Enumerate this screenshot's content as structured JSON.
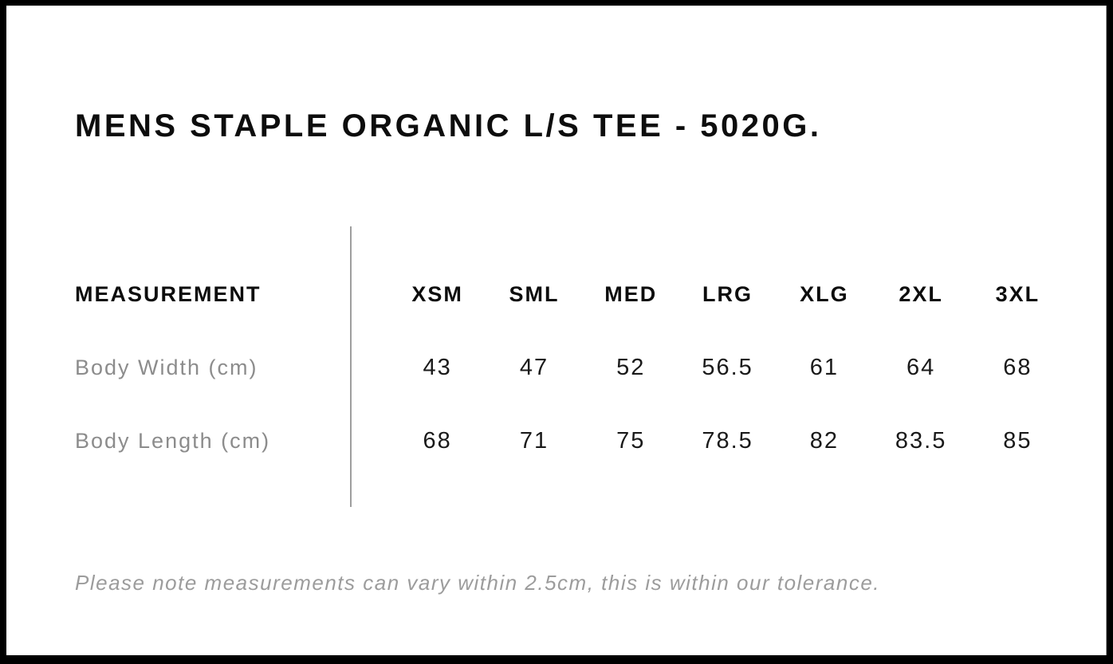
{
  "page": {
    "title": "MENS STAPLE ORGANIC L/S TEE - 5020G.",
    "note": "Please note measurements can vary within 2.5cm, this is within our tolerance."
  },
  "size_chart": {
    "measurement_header": "MEASUREMENT",
    "sizes": [
      "XSM",
      "SML",
      "MED",
      "LRG",
      "XLG",
      "2XL",
      "3XL"
    ],
    "rows": [
      {
        "label": "Body Width (cm)",
        "values": [
          "43",
          "47",
          "52",
          "56.5",
          "61",
          "64",
          "68"
        ]
      },
      {
        "label": "Body Length (cm)",
        "values": [
          "68",
          "71",
          "75",
          "78.5",
          "82",
          "83.5",
          "85"
        ]
      }
    ]
  },
  "chart_data": {
    "type": "table",
    "title": "MENS STAPLE ORGANIC L/S TEE - 5020G.",
    "columns": [
      "MEASUREMENT",
      "XSM",
      "SML",
      "MED",
      "LRG",
      "XLG",
      "2XL",
      "3XL"
    ],
    "rows": [
      [
        "Body Width (cm)",
        43,
        47,
        52,
        56.5,
        61,
        64,
        68
      ],
      [
        "Body Length (cm)",
        68,
        71,
        75,
        78.5,
        82,
        83.5,
        85
      ]
    ],
    "note": "Please note measurements can vary within 2.5cm, this is within our tolerance."
  },
  "colors": {
    "frame_black": "#000000",
    "heading_black": "#0d0d0d",
    "value_black": "#1a1a1a",
    "label_gray": "#8c8c8c",
    "note_gray": "#9c9c9c",
    "divider_gray": "#9e9e9e",
    "background_white": "#ffffff"
  }
}
